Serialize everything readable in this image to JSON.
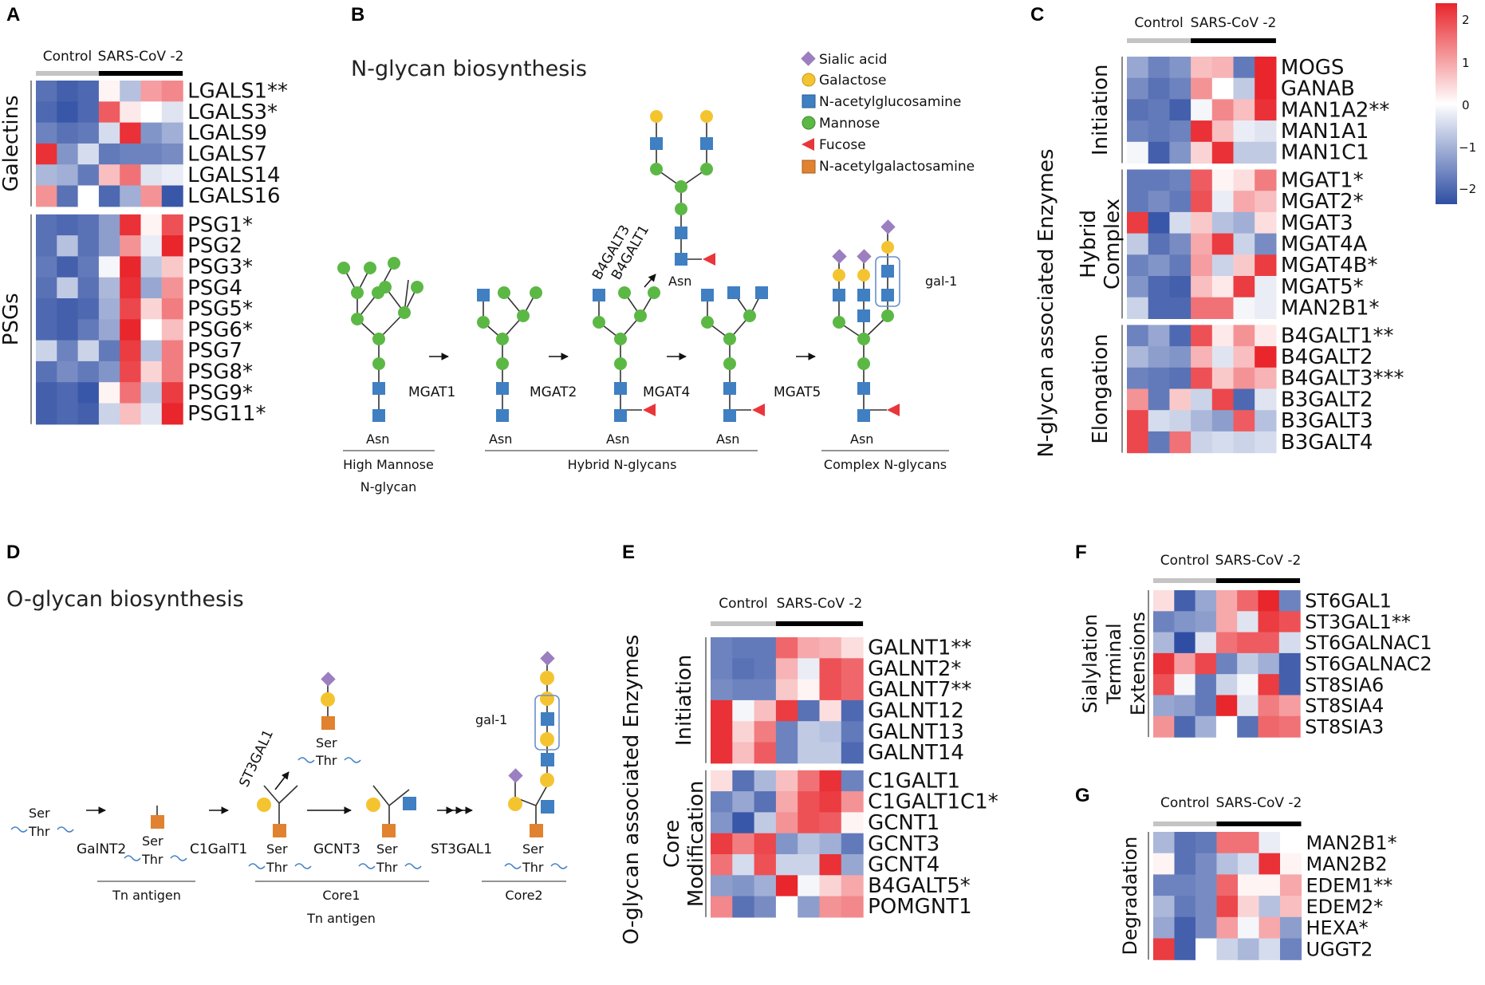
{
  "panels": {
    "A": {
      "label": "A",
      "conditions": [
        "Control",
        "SARS-CoV -2"
      ],
      "groups": [
        {
          "name": "Galectins",
          "genes": [
            "LGALS1**",
            "LGALS3*",
            "LGALS9",
            "LGALS7",
            "LGALS14",
            "LGALS16"
          ],
          "values": [
            [
              -1.6,
              -1.8,
              -1.7,
              0.1,
              -0.7,
              0.9,
              1.1
            ],
            [
              -1.7,
              -1.9,
              -1.7,
              1.5,
              0.2,
              0.0,
              -0.3
            ],
            [
              -1.4,
              -1.6,
              -1.5,
              -0.4,
              1.9,
              -1.2,
              -0.9
            ],
            [
              1.9,
              -1.2,
              -0.4,
              -1.5,
              -1.4,
              -1.4,
              -1.3
            ],
            [
              -0.8,
              -0.9,
              -1.5,
              0.6,
              1.3,
              -0.3,
              -0.2
            ],
            [
              1.0,
              -1.6,
              0.0,
              -1.7,
              -0.9,
              1.0,
              -1.9
            ]
          ]
        },
        {
          "name": "PSGs",
          "genes": [
            "PSG1*",
            "PSG2",
            "PSG3*",
            "PSG4",
            "PSG5*",
            "PSG6*",
            "PSG7",
            "PSG8*",
            "PSG9*",
            "PSG11*"
          ],
          "values": [
            [
              -1.6,
              -1.7,
              -1.6,
              -1.1,
              1.9,
              0.1,
              1.6
            ],
            [
              -1.6,
              -0.7,
              -1.6,
              -1.1,
              1.0,
              -0.2,
              2.0
            ],
            [
              -1.5,
              -1.8,
              -1.5,
              -0.1,
              2.0,
              -0.6,
              0.5
            ],
            [
              -1.6,
              -0.6,
              -1.6,
              -0.8,
              1.9,
              -1.0,
              1.0
            ],
            [
              -1.7,
              -1.8,
              -1.7,
              -0.9,
              1.7,
              0.4,
              1.2
            ],
            [
              -1.7,
              -1.8,
              -1.5,
              -1.0,
              2.0,
              0.0,
              0.6
            ],
            [
              -0.5,
              -1.4,
              -0.5,
              -1.5,
              1.8,
              -0.7,
              1.2
            ],
            [
              -1.6,
              -1.3,
              -1.5,
              -1.2,
              1.7,
              0.4,
              1.2
            ],
            [
              -1.8,
              -1.7,
              -1.9,
              0.1,
              1.3,
              -0.6,
              1.8
            ],
            [
              -1.8,
              -1.7,
              -1.8,
              -0.5,
              0.6,
              -0.3,
              2.0
            ]
          ]
        }
      ]
    },
    "B": {
      "label": "B",
      "title": "N-glycan  biosynthesis",
      "legend": [
        {
          "shape": "diamond",
          "color": "#9b7fc0",
          "label": "Sialic acid"
        },
        {
          "shape": "circle",
          "color": "#f4c430",
          "label": "Galactose"
        },
        {
          "shape": "square",
          "color": "#3f7fc2",
          "label": "N-acetylglucosamine"
        },
        {
          "shape": "circle",
          "color": "#5cb845",
          "label": "Mannose"
        },
        {
          "shape": "triangle",
          "color": "#e8363a",
          "label": "Fucose"
        },
        {
          "shape": "square",
          "color": "#e0822f",
          "label": "N-acetylgalactosamine"
        }
      ],
      "enzymes": [
        "MGAT1",
        "MGAT2",
        "MGAT4",
        "MGAT5"
      ],
      "branch_enzymes": [
        "B4GALT3",
        "B4GALT1"
      ],
      "asn": "Asn",
      "gal_box": "gal-1",
      "groups": [
        "High Mannose",
        "N-glycan",
        "Hybrid N-glycans",
        "Complex N-glycans"
      ]
    },
    "C": {
      "label": "C",
      "conditions": [
        "Control",
        "SARS-CoV -2"
      ],
      "axis_title": "N-glycan associated Enzymes",
      "colorbar": {
        "ticks": [
          "2",
          "1",
          "0",
          "−1",
          "−2"
        ],
        "max": 2,
        "min": -2
      },
      "groups": [
        {
          "name": "Initiation",
          "genes": [
            "MOGS",
            "GANAB",
            "MAN1A2**",
            "MAN1A1",
            "MAN1C1"
          ],
          "values": [
            [
              -1.0,
              -1.4,
              -1.2,
              0.6,
              0.7,
              -1.5,
              2.0
            ],
            [
              -1.3,
              -1.6,
              -1.4,
              1.0,
              0.0,
              -0.6,
              2.0
            ],
            [
              -1.6,
              -1.5,
              -1.8,
              -0.1,
              1.1,
              0.6,
              1.9
            ],
            [
              -1.4,
              -1.5,
              -1.4,
              1.9,
              0.6,
              -0.2,
              -0.3
            ],
            [
              -0.1,
              -1.8,
              -1.2,
              0.4,
              1.9,
              -0.6,
              -0.6
            ]
          ]
        },
        {
          "name": "Hybrid\nComplex",
          "genes": [
            "MGAT1*",
            "MGAT2*",
            "MGAT3",
            "MGAT4A",
            "MGAT4B*",
            "MGAT5*",
            "MAN2B1*"
          ],
          "values": [
            [
              -1.5,
              -1.5,
              -1.4,
              1.5,
              0.1,
              0.3,
              1.2
            ],
            [
              -1.5,
              -1.3,
              -1.5,
              1.6,
              -0.2,
              0.8,
              0.6
            ],
            [
              1.8,
              -1.9,
              -0.4,
              0.5,
              -0.7,
              -0.9,
              0.3
            ],
            [
              -0.6,
              -1.6,
              -1.3,
              0.8,
              1.8,
              -0.5,
              -1.3
            ],
            [
              -1.4,
              -1.2,
              -1.5,
              0.9,
              -0.5,
              0.5,
              1.8
            ],
            [
              -1.2,
              -1.7,
              -1.8,
              0.6,
              0.2,
              1.8,
              -0.2
            ],
            [
              -0.5,
              -1.7,
              -1.7,
              1.3,
              1.3,
              -0.1,
              -0.2
            ]
          ]
        },
        {
          "name": "Elongation",
          "genes": [
            "B4GALT1**",
            "B4GALT2",
            "B4GALT3***",
            "B3GALT2",
            "B3GALT3",
            "B3GALT4"
          ],
          "values": [
            [
              -1.4,
              -1.0,
              -1.7,
              1.6,
              0.2,
              1.0,
              0.2
            ],
            [
              -0.8,
              -1.1,
              -1.2,
              0.7,
              -0.3,
              0.6,
              2.0
            ],
            [
              -1.4,
              -1.5,
              -1.6,
              1.6,
              0.5,
              1.0,
              0.7
            ],
            [
              1.0,
              -1.5,
              0.5,
              -0.5,
              1.7,
              -1.7,
              -0.3
            ],
            [
              1.7,
              -0.4,
              -0.5,
              -0.8,
              -1.1,
              1.5,
              -0.7
            ],
            [
              1.7,
              -1.5,
              1.3,
              -0.5,
              -0.4,
              -0.5,
              -0.4
            ]
          ]
        }
      ]
    },
    "D": {
      "label": "D",
      "title": "O-glycan  biosynthesis",
      "enzymes": [
        "GalNT2",
        "C1GalT1",
        "GCNT3",
        "ST3GAL1"
      ],
      "branch_enzyme": "ST3GAL1",
      "ser": "Ser",
      "thr": "Thr",
      "gal_box": "gal-1",
      "groups": [
        "Tn antigen",
        "Core1",
        "Tn antigen",
        "Core2"
      ]
    },
    "E": {
      "label": "E",
      "conditions": [
        "Control",
        "SARS-CoV -2"
      ],
      "axis_title": "O-glycan associated Enzymes",
      "groups": [
        {
          "name": "Initiation",
          "genes": [
            "GALNT1**",
            "GALNT2*",
            "GALNT7**",
            "GALNT12",
            "GALNT13",
            "GALNT14"
          ],
          "values": [
            [
              -1.4,
              -1.5,
              -1.5,
              1.4,
              0.8,
              0.7,
              0.3
            ],
            [
              -1.4,
              -1.6,
              -1.5,
              0.7,
              -0.2,
              1.6,
              1.4
            ],
            [
              -1.3,
              -1.4,
              -1.4,
              0.5,
              0.1,
              1.6,
              1.4
            ],
            [
              1.9,
              -0.1,
              0.6,
              1.8,
              -1.6,
              0.3,
              -1.7
            ],
            [
              1.9,
              0.4,
              1.2,
              -1.4,
              -0.6,
              -0.7,
              -1.5
            ],
            [
              1.9,
              0.6,
              1.5,
              -1.4,
              -0.6,
              -0.6,
              -1.7
            ]
          ]
        },
        {
          "name": "Core\nModification",
          "genes": [
            "C1GALT1",
            "C1GALT1C1*",
            "GCNT1",
            "GCNT3",
            "GCNT4",
            "B4GALT5*",
            "POMGNT1"
          ],
          "values": [
            [
              0.3,
              -1.6,
              -0.8,
              0.6,
              1.3,
              1.9,
              -1.4
            ],
            [
              -1.4,
              -1.0,
              -1.6,
              0.8,
              1.6,
              1.8,
              1.0
            ],
            [
              -1.2,
              -1.9,
              -0.6,
              1.0,
              1.6,
              1.5,
              0.1
            ],
            [
              1.8,
              1.2,
              1.7,
              -1.2,
              -0.7,
              -0.9,
              -1.5
            ],
            [
              1.3,
              -0.4,
              1.6,
              -0.5,
              -0.5,
              1.9,
              -1.0
            ],
            [
              -1.1,
              -1.2,
              -0.9,
              2.0,
              -0.1,
              0.4,
              0.8
            ],
            [
              1.1,
              -1.6,
              -1.3,
              0.0,
              -1.1,
              1.0,
              1.1
            ]
          ]
        }
      ]
    },
    "F": {
      "label": "F",
      "conditions": [
        "Control",
        "SARS-CoV -2"
      ],
      "groups": [
        {
          "name": "Sialylation\nTerminal\nExtensions",
          "genes": [
            "ST6GAL1",
            "ST3GAL1**",
            "ST6GALNAC1",
            "ST6GALNAC2",
            "ST8SIA6",
            "ST8SIA4",
            "ST8SIA3"
          ],
          "values": [
            [
              0.3,
              -1.8,
              -1.0,
              0.8,
              1.4,
              2.0,
              -1.4
            ],
            [
              -1.4,
              -1.2,
              -1.1,
              0.8,
              -0.3,
              1.8,
              1.6
            ],
            [
              -0.8,
              -2.0,
              -0.3,
              1.3,
              1.5,
              1.5,
              -0.4
            ],
            [
              1.9,
              0.9,
              1.7,
              -1.4,
              -0.6,
              -0.9,
              -1.8
            ],
            [
              1.6,
              -0.1,
              -1.5,
              -0.5,
              -0.1,
              1.8,
              -1.8
            ],
            [
              -1.0,
              -1.1,
              -1.5,
              2.0,
              -0.3,
              1.2,
              0.9
            ],
            [
              1.0,
              -1.7,
              -0.9,
              0.0,
              -1.6,
              1.4,
              1.3
            ]
          ]
        }
      ]
    },
    "G": {
      "label": "G",
      "conditions": [
        "Control",
        "SARS-CoV -2"
      ],
      "groups": [
        {
          "name": "Degradation",
          "genes": [
            "MAN2B1*",
            "MAN2B2",
            "EDEM1**",
            "EDEM2*",
            "HEXA*",
            "UGGT2"
          ],
          "values": [
            [
              -0.8,
              -1.6,
              -1.5,
              1.3,
              1.3,
              -0.2,
              0.0
            ],
            [
              0.1,
              -1.6,
              -1.3,
              -0.7,
              -0.4,
              1.9,
              0.1
            ],
            [
              -1.4,
              -1.4,
              -1.3,
              1.4,
              0.1,
              0.1,
              0.8
            ],
            [
              -0.8,
              -1.5,
              -1.3,
              1.7,
              0.4,
              -0.7,
              0.6
            ],
            [
              -1.0,
              -1.8,
              -1.3,
              0.9,
              -0.1,
              0.8,
              -1.1
            ],
            [
              1.8,
              -1.8,
              0.0,
              -0.5,
              -0.8,
              -0.4,
              -1.4
            ]
          ]
        }
      ]
    }
  },
  "chart_data": [
    {
      "type": "heatmap",
      "panel": "A",
      "title": "",
      "columns": [
        "Control",
        "Control",
        "Control",
        "SARS-CoV -2",
        "SARS-CoV -2",
        "SARS-CoV -2",
        "SARS-CoV -2"
      ],
      "value_range": [
        -2,
        2
      ],
      "note": "z-scored expression; values in panels.A.groups"
    },
    {
      "type": "heatmap",
      "panel": "C",
      "title": "N-glycan associated Enzymes",
      "columns": [
        "Control",
        "Control",
        "Control",
        "SARS-CoV -2",
        "SARS-CoV -2",
        "SARS-CoV -2",
        "SARS-CoV -2"
      ],
      "value_range": [
        -2,
        2
      ]
    },
    {
      "type": "heatmap",
      "panel": "E",
      "title": "O-glycan associated Enzymes",
      "columns": [
        "Control",
        "Control",
        "Control",
        "SARS-CoV -2",
        "SARS-CoV -2",
        "SARS-CoV -2",
        "SARS-CoV -2"
      ],
      "value_range": [
        -2,
        2
      ]
    },
    {
      "type": "heatmap",
      "panel": "F",
      "title": "",
      "columns": [
        "Control",
        "Control",
        "Control",
        "SARS-CoV -2",
        "SARS-CoV -2",
        "SARS-CoV -2",
        "SARS-CoV -2"
      ],
      "value_range": [
        -2,
        2
      ]
    },
    {
      "type": "heatmap",
      "panel": "G",
      "title": "",
      "columns": [
        "Control",
        "Control",
        "Control",
        "SARS-CoV -2",
        "SARS-CoV -2",
        "SARS-CoV -2",
        "SARS-CoV -2"
      ],
      "value_range": [
        -2,
        2
      ]
    }
  ],
  "colors": {
    "high": "#e8262c",
    "mid": "#ffffff",
    "low": "#2f4ea3",
    "control_bar": "#c4c4c4",
    "sars_bar": "#000000",
    "sialic": "#9b7fc0",
    "galactose": "#f4c430",
    "glcnac": "#3f7fc2",
    "mannose": "#5cb845",
    "fucose": "#e8363a",
    "galnac": "#e0822f"
  }
}
